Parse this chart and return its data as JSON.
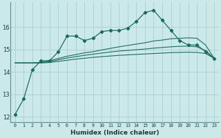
{
  "xlabel": "Humidex (Indice chaleur)",
  "x_values": [
    0,
    1,
    2,
    3,
    4,
    5,
    6,
    7,
    8,
    9,
    10,
    11,
    12,
    13,
    14,
    15,
    16,
    17,
    18,
    19,
    20,
    21,
    22,
    23
  ],
  "line1_y": [
    12.1,
    12.8,
    14.1,
    14.5,
    14.5,
    14.9,
    15.6,
    15.6,
    15.4,
    15.5,
    15.8,
    15.85,
    15.85,
    15.95,
    16.25,
    16.65,
    16.75,
    16.3,
    15.85,
    15.4,
    15.2,
    15.2,
    14.9,
    14.6
  ],
  "line2_y": [
    14.4,
    14.4,
    14.4,
    14.42,
    14.5,
    14.6,
    14.7,
    14.77,
    14.85,
    14.9,
    14.98,
    15.05,
    15.12,
    15.18,
    15.24,
    15.3,
    15.38,
    15.42,
    15.48,
    15.5,
    15.52,
    15.5,
    15.2,
    14.6
  ],
  "line3_y": [
    14.4,
    14.4,
    14.4,
    14.41,
    14.46,
    14.54,
    14.62,
    14.68,
    14.74,
    14.79,
    14.84,
    14.89,
    14.93,
    14.96,
    14.99,
    15.02,
    15.06,
    15.09,
    15.12,
    15.14,
    15.15,
    15.12,
    14.95,
    14.6
  ],
  "line4_y": [
    14.4,
    14.4,
    14.4,
    14.4,
    14.42,
    14.47,
    14.52,
    14.57,
    14.61,
    14.65,
    14.68,
    14.71,
    14.74,
    14.76,
    14.78,
    14.8,
    14.82,
    14.84,
    14.86,
    14.87,
    14.88,
    14.87,
    14.82,
    14.6
  ],
  "bg_color": "#cce9ea",
  "grid_color": "#b0d0d2",
  "line_color": "#1a6b5a",
  "ylim_min": 11.75,
  "ylim_max": 17.1,
  "yticks": [
    12,
    13,
    14,
    15,
    16
  ],
  "xlim_min": -0.5,
  "xlim_max": 23.5
}
